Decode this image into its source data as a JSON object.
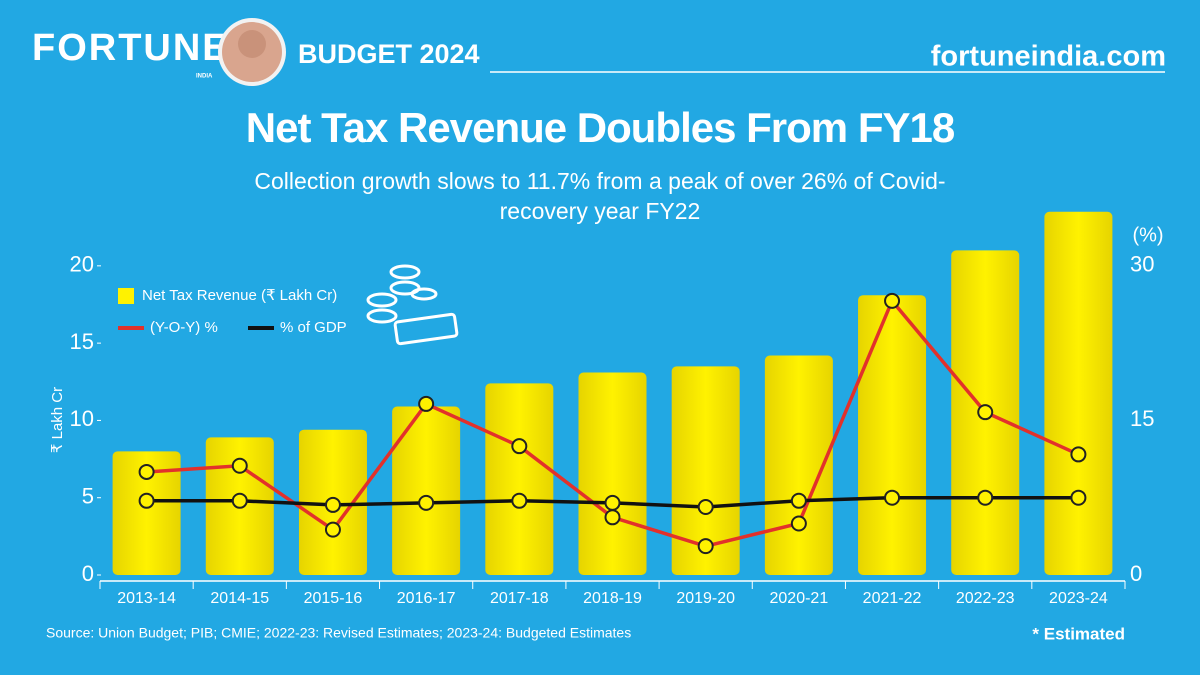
{
  "header": {
    "brand": "FORTUNE",
    "brand_sub": "INDIA",
    "section": "BUDGET 2024",
    "site": "fortuneindia.com"
  },
  "chart_data": {
    "type": "bar_line",
    "title": "Net Tax Revenue Doubles From FY18",
    "subtitle": "Collection growth slows to 11.7% from a peak of over 26% of Covid-recovery year FY22",
    "y_label": "₹ Lakh Cr",
    "y2_label": "(%)",
    "categories": [
      "2013-14",
      "2014-15",
      "2015-16",
      "2016-17",
      "2017-18",
      "2018-19",
      "2019-20",
      "2020-21",
      "2021-22",
      "2022-23",
      "2023-24"
    ],
    "series": [
      {
        "name": "Net Tax Revenue (₹ Lakh Cr)",
        "kind": "bar",
        "color": "#fff200",
        "values": [
          8.0,
          8.9,
          9.4,
          10.9,
          12.4,
          13.1,
          13.5,
          14.2,
          18.1,
          21.0,
          23.5
        ]
      },
      {
        "name": "(Y-O-Y) %",
        "kind": "line",
        "axis": "y2",
        "color": "#e2312b",
        "values": [
          10.0,
          10.6,
          4.4,
          16.6,
          12.5,
          5.6,
          2.8,
          5.0,
          26.6,
          15.8,
          11.7
        ]
      },
      {
        "name": "% of GDP",
        "kind": "line",
        "axis": "y2",
        "color": "#111111",
        "values": [
          7.2,
          7.2,
          6.8,
          7.0,
          7.2,
          7.0,
          6.6,
          7.2,
          7.5,
          7.5,
          7.5
        ]
      }
    ],
    "ylim": [
      0,
      24
    ],
    "yticks": [
      0,
      5,
      10,
      15,
      20
    ],
    "y2lim": [
      0,
      36
    ],
    "y2ticks": [
      0,
      15,
      30
    ],
    "source": "Source: Union Budget; PIB; CMIE; 2022-23: Revised Estimates; 2023-24: Budgeted Estimates",
    "note": "* Estimated"
  }
}
